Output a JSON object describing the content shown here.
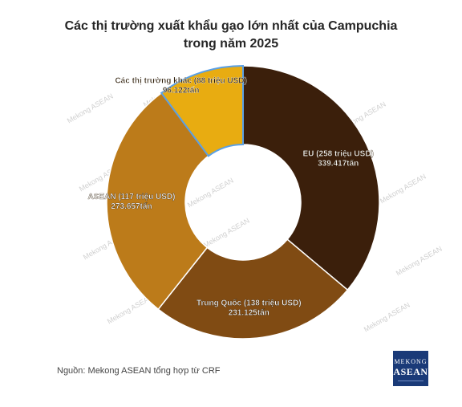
{
  "title_line1": "Các thị trường xuất khẩu gạo lớn nhất của Campuchia",
  "title_line2": "trong năm 2025",
  "watermark": "Mekong ASEAN",
  "source": "Nguồn: Mekong ASEAN tổng hợp từ CRF",
  "logo": {
    "line1": "MEKONG",
    "line2": "ASEAN"
  },
  "chart_data": {
    "type": "pie",
    "style": "donut",
    "title": "Các thị trường xuất khẩu gạo lớn nhất của Campuchia trong năm 2025",
    "unit": "tấn",
    "slices": [
      {
        "name": "EU",
        "value_usd": "258 triệu USD",
        "value": 339417,
        "label": "EU (258 triệu USD)",
        "sublabel": "339.417tấn",
        "color": "#3b1f0b"
      },
      {
        "name": "Trung Quốc",
        "value_usd": "138 triệu USD",
        "value": 231125,
        "label": "Trung Quốc (138 triệu USD)",
        "sublabel": "231.125tấn",
        "color": "#804b13"
      },
      {
        "name": "ASEAN",
        "value_usd": "117 triệu USD",
        "value": 273657,
        "label": "ASEAN (117 triệu USD)",
        "sublabel": "273.657tấn",
        "color": "#bc7b1a"
      },
      {
        "name": "Các thị trường khác",
        "value_usd": "88 triệu USD",
        "value": 96122,
        "label": "Các thị trường khác (88 triệu USD)",
        "sublabel": "96.122tấn",
        "color": "#e8ac11"
      }
    ]
  }
}
